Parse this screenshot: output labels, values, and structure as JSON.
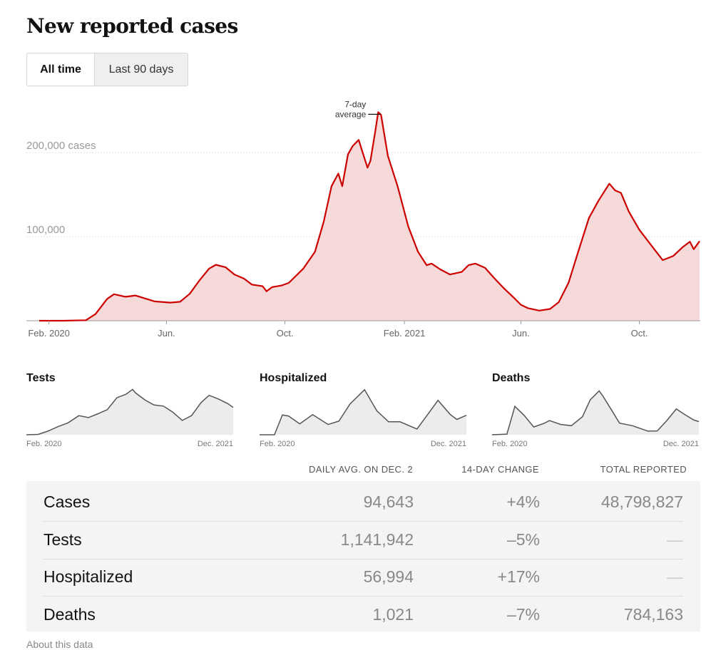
{
  "header": {
    "title": "New reported cases"
  },
  "tabs": [
    {
      "label": "All time",
      "active": true
    },
    {
      "label": "Last 90 days",
      "active": false
    }
  ],
  "chart_data": [
    {
      "type": "area",
      "title": "New reported cases",
      "series_label": "7-day average",
      "y_ticks": [
        {
          "value": 200000,
          "label": "200,000 cases"
        },
        {
          "value": 100000,
          "label": "100,000"
        }
      ],
      "ylim": [
        0,
        250000
      ],
      "grid": true,
      "line_color": "#cc0000",
      "fill_color": "#f6dada",
      "x_ticks": [
        {
          "date": "2020-02-01",
          "label": "Feb. 2020"
        },
        {
          "date": "2020-06-01",
          "label": "Jun."
        },
        {
          "date": "2020-10-01",
          "label": "Oct."
        },
        {
          "date": "2021-02-01",
          "label": "Feb. 2021"
        },
        {
          "date": "2021-06-01",
          "label": "Jun."
        },
        {
          "date": "2021-10-01",
          "label": "Oct."
        }
      ],
      "points": [
        [
          "2020-01-22",
          0
        ],
        [
          "2020-02-15",
          0
        ],
        [
          "2020-03-10",
          600
        ],
        [
          "2020-03-20",
          8000
        ],
        [
          "2020-04-01",
          26000
        ],
        [
          "2020-04-08",
          31500
        ],
        [
          "2020-04-20",
          28500
        ],
        [
          "2020-04-30",
          30000
        ],
        [
          "2020-05-20",
          23000
        ],
        [
          "2020-06-05",
          21500
        ],
        [
          "2020-06-15",
          22500
        ],
        [
          "2020-06-25",
          32000
        ],
        [
          "2020-07-05",
          48000
        ],
        [
          "2020-07-15",
          62000
        ],
        [
          "2020-07-22",
          66500
        ],
        [
          "2020-08-01",
          63500
        ],
        [
          "2020-08-10",
          55000
        ],
        [
          "2020-08-20",
          50000
        ],
        [
          "2020-08-28",
          43000
        ],
        [
          "2020-09-08",
          41000
        ],
        [
          "2020-09-12",
          35000
        ],
        [
          "2020-09-18",
          40000
        ],
        [
          "2020-09-28",
          42000
        ],
        [
          "2020-10-05",
          45000
        ],
        [
          "2020-10-20",
          62000
        ],
        [
          "2020-11-01",
          82000
        ],
        [
          "2020-11-10",
          118000
        ],
        [
          "2020-11-18",
          160000
        ],
        [
          "2020-11-25",
          175000
        ],
        [
          "2020-11-29",
          160000
        ],
        [
          "2020-12-05",
          198000
        ],
        [
          "2020-12-10",
          208000
        ],
        [
          "2020-12-16",
          215000
        ],
        [
          "2020-12-20",
          200000
        ],
        [
          "2020-12-25",
          182000
        ],
        [
          "2020-12-28",
          190000
        ],
        [
          "2021-01-02",
          225000
        ],
        [
          "2021-01-05",
          248000
        ],
        [
          "2021-01-08",
          245000
        ],
        [
          "2021-01-15",
          196000
        ],
        [
          "2021-01-25",
          160000
        ],
        [
          "2021-02-05",
          112000
        ],
        [
          "2021-02-15",
          82000
        ],
        [
          "2021-02-24",
          66000
        ],
        [
          "2021-03-01",
          68000
        ],
        [
          "2021-03-10",
          61000
        ],
        [
          "2021-03-20",
          55000
        ],
        [
          "2021-04-01",
          58000
        ],
        [
          "2021-04-08",
          66000
        ],
        [
          "2021-04-15",
          68000
        ],
        [
          "2021-04-25",
          63000
        ],
        [
          "2021-05-05",
          50000
        ],
        [
          "2021-05-15",
          38000
        ],
        [
          "2021-05-25",
          27000
        ],
        [
          "2021-06-01",
          19000
        ],
        [
          "2021-06-08",
          15000
        ],
        [
          "2021-06-20",
          12000
        ],
        [
          "2021-07-01",
          14000
        ],
        [
          "2021-07-10",
          22000
        ],
        [
          "2021-07-20",
          45000
        ],
        [
          "2021-07-30",
          82000
        ],
        [
          "2021-08-10",
          122000
        ],
        [
          "2021-08-20",
          143000
        ],
        [
          "2021-08-31",
          163000
        ],
        [
          "2021-09-06",
          155000
        ],
        [
          "2021-09-12",
          152000
        ],
        [
          "2021-09-20",
          130000
        ],
        [
          "2021-10-01",
          108000
        ],
        [
          "2021-10-15",
          87000
        ],
        [
          "2021-10-25",
          72000
        ],
        [
          "2021-11-05",
          77000
        ],
        [
          "2021-11-15",
          88000
        ],
        [
          "2021-11-22",
          94000
        ],
        [
          "2021-11-26",
          85000
        ],
        [
          "2021-12-02",
          94643
        ]
      ]
    },
    {
      "type": "area",
      "title": "Tests",
      "x_labels": [
        "Feb. 2020",
        "Dec. 2021"
      ],
      "ylim": [
        0,
        2000000
      ],
      "points": [
        [
          "2020-02-01",
          0
        ],
        [
          "2020-03-10",
          15000
        ],
        [
          "2020-04-10",
          150000
        ],
        [
          "2020-05-15",
          350000
        ],
        [
          "2020-06-15",
          500000
        ],
        [
          "2020-07-20",
          800000
        ],
        [
          "2020-08-20",
          720000
        ],
        [
          "2020-09-20",
          880000
        ],
        [
          "2020-10-20",
          1050000
        ],
        [
          "2020-11-20",
          1550000
        ],
        [
          "2020-12-20",
          1700000
        ],
        [
          "2021-01-10",
          1900000
        ],
        [
          "2021-01-20",
          1750000
        ],
        [
          "2021-02-20",
          1450000
        ],
        [
          "2021-03-20",
          1250000
        ],
        [
          "2021-04-20",
          1200000
        ],
        [
          "2021-05-20",
          950000
        ],
        [
          "2021-06-20",
          600000
        ],
        [
          "2021-07-20",
          800000
        ],
        [
          "2021-08-20",
          1350000
        ],
        [
          "2021-09-15",
          1650000
        ],
        [
          "2021-10-15",
          1500000
        ],
        [
          "2021-11-15",
          1300000
        ],
        [
          "2021-12-02",
          1141942
        ]
      ]
    },
    {
      "type": "area",
      "title": "Hospitalized",
      "x_labels": [
        "Feb. 2020",
        "Dec. 2021"
      ],
      "ylim": [
        0,
        140000
      ],
      "points": [
        [
          "2020-02-01",
          0
        ],
        [
          "2020-03-20",
          0
        ],
        [
          "2020-04-15",
          58000
        ],
        [
          "2020-05-05",
          55000
        ],
        [
          "2020-06-10",
          32000
        ],
        [
          "2020-07-22",
          59000
        ],
        [
          "2020-09-10",
          30000
        ],
        [
          "2020-10-15",
          40000
        ],
        [
          "2020-11-20",
          90000
        ],
        [
          "2021-01-06",
          132000
        ],
        [
          "2021-02-15",
          70000
        ],
        [
          "2021-03-25",
          38000
        ],
        [
          "2021-05-01",
          38000
        ],
        [
          "2021-06-25",
          17000
        ],
        [
          "2021-07-30",
          60000
        ],
        [
          "2021-09-01",
          101000
        ],
        [
          "2021-10-10",
          60000
        ],
        [
          "2021-11-01",
          45000
        ],
        [
          "2021-12-02",
          56994
        ]
      ]
    },
    {
      "type": "area",
      "title": "Deaths",
      "x_labels": [
        "Feb. 2020",
        "Dec. 2021"
      ],
      "ylim": [
        0,
        3700
      ],
      "points": [
        [
          "2020-02-01",
          0
        ],
        [
          "2020-03-20",
          50
        ],
        [
          "2020-04-15",
          2200
        ],
        [
          "2020-05-15",
          1500
        ],
        [
          "2020-06-15",
          600
        ],
        [
          "2020-07-20",
          900
        ],
        [
          "2020-08-05",
          1100
        ],
        [
          "2020-09-10",
          800
        ],
        [
          "2020-10-15",
          700
        ],
        [
          "2020-11-20",
          1400
        ],
        [
          "2020-12-15",
          2700
        ],
        [
          "2021-01-13",
          3400
        ],
        [
          "2021-01-25",
          3000
        ],
        [
          "2021-02-20",
          2000
        ],
        [
          "2021-03-20",
          900
        ],
        [
          "2021-05-01",
          700
        ],
        [
          "2021-06-20",
          280
        ],
        [
          "2021-07-20",
          300
        ],
        [
          "2021-08-20",
          1100
        ],
        [
          "2021-09-20",
          2000
        ],
        [
          "2021-10-15",
          1600
        ],
        [
          "2021-11-15",
          1150
        ],
        [
          "2021-12-02",
          1021
        ]
      ]
    }
  ],
  "table": {
    "headers": [
      "DAILY AVG. ON DEC. 2",
      "14-DAY CHANGE",
      "TOTAL REPORTED"
    ],
    "rows": [
      {
        "label": "Cases",
        "daily_avg": "94,643",
        "change": "+4%",
        "total": "48,798,827"
      },
      {
        "label": "Tests",
        "daily_avg": "1,141,942",
        "change": "–5%",
        "total": "—"
      },
      {
        "label": "Hospitalized",
        "daily_avg": "56,994",
        "change": "+17%",
        "total": "—"
      },
      {
        "label": "Deaths",
        "daily_avg": "1,021",
        "change": "–7%",
        "total": "784,163"
      }
    ]
  },
  "footer": {
    "about": "About this data"
  }
}
